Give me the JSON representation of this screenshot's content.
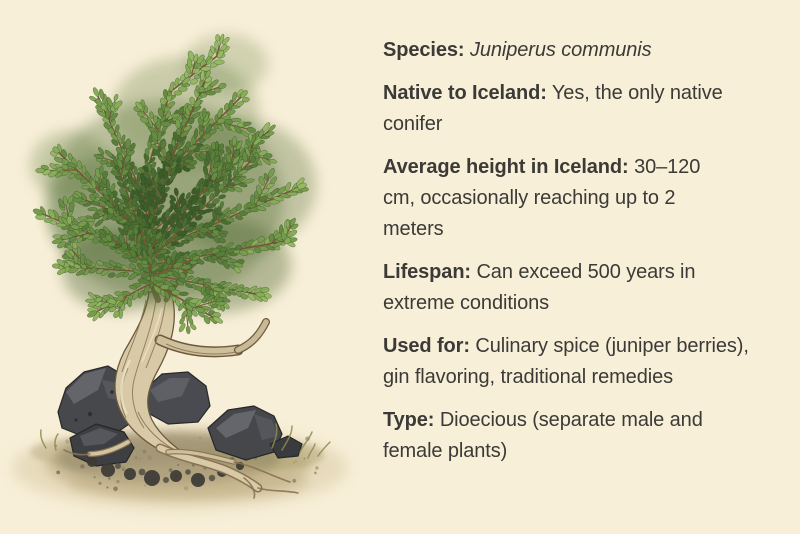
{
  "page": {
    "background_color": "#f8efd8",
    "text_color": "#3b3a37"
  },
  "illustration": {
    "description": "Watercolor botanical illustration of a gnarled juniper tree growing among dark volcanic rocks on a sandy mound",
    "palette": {
      "foliage_greens": [
        "#3c5c29",
        "#4a6c32",
        "#587c3a",
        "#668c43",
        "#789c4e",
        "#88ac58",
        "#96b864"
      ],
      "twig_brown": "#7b5636",
      "trunk_fill": "#d8caa6",
      "trunk_line": "#8a7354",
      "trunk_outline": "#6d5a3e",
      "trunk_highlight": "#efe5c8",
      "rock_base": "#47484c",
      "rock_dark": "#323337",
      "rock_light": "#6c6e72",
      "ground_tan": "#cdbd92",
      "ground_olive": "#9d9460",
      "soil_dark": "#5c5644"
    }
  },
  "facts": [
    {
      "label": "Species:",
      "value": "Juniperus communis"
    },
    {
      "label": "Native to Iceland:",
      "value": "Yes, the only native conifer"
    },
    {
      "label": "Average height in Iceland:",
      "value": "30–120 cm, occasionally reaching up to 2 meters"
    },
    {
      "label": "Lifespan:",
      "value": "Can exceed 500 years in extreme conditions"
    },
    {
      "label": "Used for:",
      "value": "Culinary spice (juniper berries), gin flavoring, traditional remedies"
    },
    {
      "label": "Type:",
      "value": "Dioecious (separate male and female plants)"
    }
  ]
}
